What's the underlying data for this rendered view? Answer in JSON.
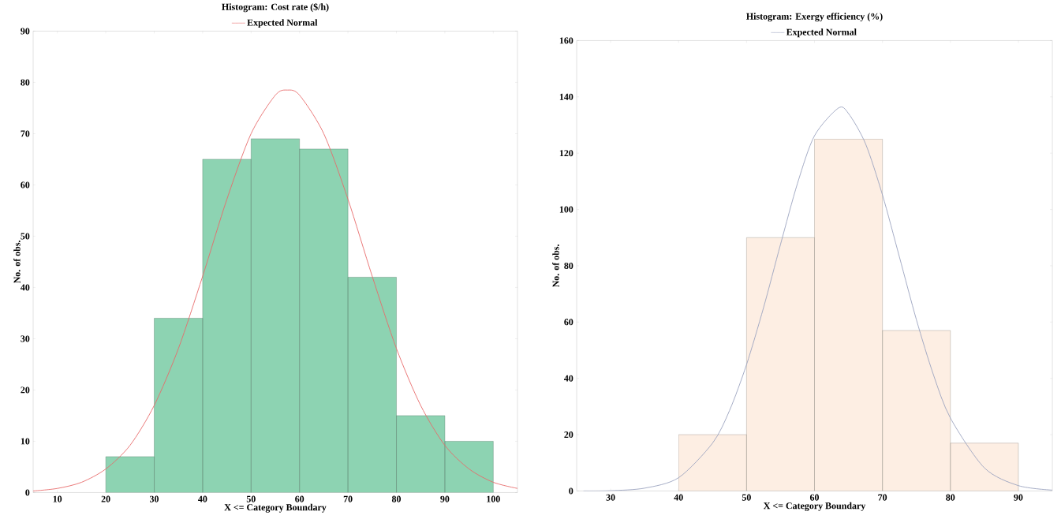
{
  "chart_data": [
    {
      "type": "histogram",
      "title": "Histogram: Cost rate ($/h)",
      "xlabel": "X <= Category Boundary",
      "ylabel": "No. of obs.",
      "bins": [
        20,
        30,
        40,
        50,
        60,
        70,
        80,
        90,
        100
      ],
      "values": [
        7,
        34,
        65,
        69,
        67,
        42,
        15,
        10
      ],
      "color": "#8dd3b2",
      "xlim": [
        5,
        105
      ],
      "xticks": [
        10,
        20,
        30,
        40,
        50,
        60,
        70,
        80,
        90,
        100
      ],
      "ylim": [
        0,
        90
      ],
      "yticks": [
        0,
        10,
        20,
        30,
        40,
        50,
        60,
        70,
        80,
        90
      ],
      "legend": "top",
      "marker": "none",
      "series": [
        {
          "name": "Expected Normal",
          "type": "line",
          "color": "#e86a6a",
          "x": [
            5,
            10,
            15,
            20,
            25,
            30,
            35,
            40,
            45,
            50,
            55,
            57.5,
            60,
            65,
            70,
            75,
            80,
            85,
            90,
            95,
            100,
            105
          ],
          "values": [
            0.3,
            0.8,
            2.0,
            4.6,
            9.2,
            17.0,
            28.1,
            42.2,
            57.2,
            70.0,
            77.5,
            78.5,
            77.5,
            70.0,
            57.2,
            42.2,
            28.1,
            17.0,
            9.2,
            4.6,
            2.0,
            0.8
          ]
        }
      ]
    },
    {
      "type": "histogram",
      "title": "Histogram: Exergy efficiency (%)",
      "xlabel": "X <= Category Boundary",
      "ylabel": "No. of obs.",
      "bins": [
        40,
        50,
        60,
        70,
        80,
        90
      ],
      "values": [
        20,
        90,
        125,
        57,
        17
      ],
      "color": "#fdeee3",
      "xlim": [
        25,
        95
      ],
      "xticks": [
        30,
        40,
        50,
        60,
        70,
        80,
        90
      ],
      "ylim": [
        0,
        160
      ],
      "yticks": [
        0,
        20,
        40,
        60,
        80,
        100,
        120,
        140,
        160
      ],
      "legend": "top",
      "marker": "none",
      "series": [
        {
          "name": "Expected Normal",
          "type": "line",
          "color": "#9ba3bf",
          "x": [
            26,
            30,
            35,
            40,
            45,
            47.5,
            50,
            52.5,
            55,
            57.5,
            60,
            63.5,
            65,
            67.5,
            70,
            72.5,
            75,
            77.5,
            80,
            85,
            90,
            95
          ],
          "values": [
            0.0,
            0.1,
            1.0,
            4.7,
            17.0,
            28.6,
            44.9,
            65.1,
            87.6,
            109.3,
            126.2,
            136,
            134.1,
            123.4,
            105.2,
            83.1,
            60.8,
            41.3,
            25.9,
            8.2,
            1.9,
            0.3
          ]
        }
      ]
    }
  ]
}
